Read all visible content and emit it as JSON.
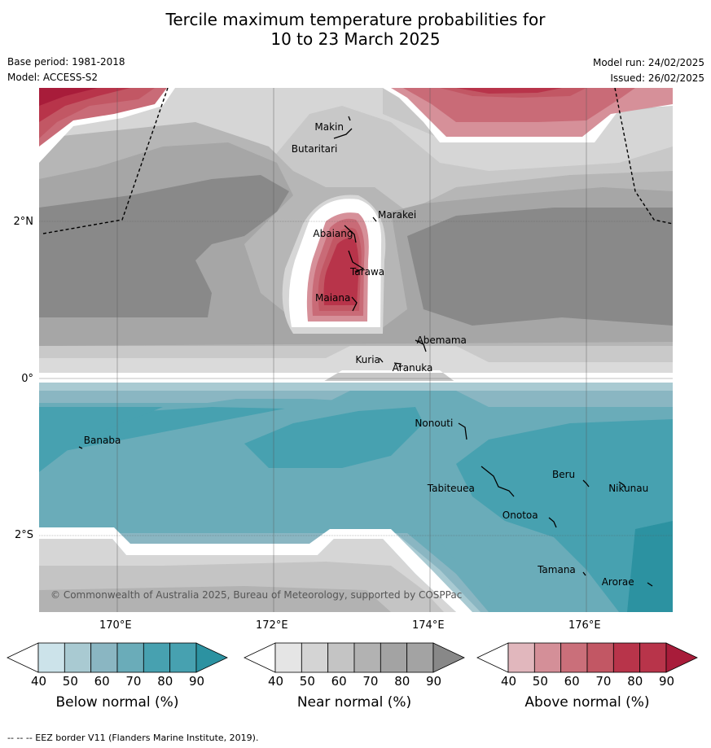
{
  "title_line1": "Tercile maximum temperature probabilities for",
  "title_line2": "10 to 23 March 2025",
  "base_period": "Base period: 1981-2018",
  "model": "Model: ACCESS-S2",
  "model_run": "Model run: 24/02/2025",
  "issued": "Issued: 26/02/2025",
  "copyright": "© Commonwealth of Australia 2025, Bureau of Meteorology, supported by COSPPac",
  "footer": "-- -- -- EEZ border V11 (Flanders Marine Institute, 2019).",
  "lon_ticks": [
    "170°E",
    "172°E",
    "174°E",
    "176°E"
  ],
  "lat_ticks": [
    "2°N",
    "0°",
    "2°S"
  ],
  "places": [
    {
      "name": "Makin",
      "lon": 172.9,
      "lat": 3.15
    },
    {
      "name": "Butaritari",
      "lon": 172.8,
      "lat": 3.0
    },
    {
      "name": "Marakei",
      "lon": 173.25,
      "lat": 2.0
    },
    {
      "name": "Abaiang",
      "lon": 172.9,
      "lat": 1.85
    },
    {
      "name": "Tarawa",
      "lon": 173.0,
      "lat": 1.4
    },
    {
      "name": "Maiana",
      "lon": 173.0,
      "lat": 0.93
    },
    {
      "name": "Abemama",
      "lon": 173.85,
      "lat": 0.4
    },
    {
      "name": "Kuria",
      "lon": 173.4,
      "lat": 0.22
    },
    {
      "name": "Aranuka",
      "lon": 173.6,
      "lat": 0.17
    },
    {
      "name": "Nonouti",
      "lon": 174.4,
      "lat": -0.65
    },
    {
      "name": "Banaba",
      "lon": 169.55,
      "lat": -0.85
    },
    {
      "name": "Tabiteuea",
      "lon": 174.8,
      "lat": -1.35
    },
    {
      "name": "Beru",
      "lon": 176.0,
      "lat": -1.33
    },
    {
      "name": "Nikunau",
      "lon": 176.45,
      "lat": -1.35
    },
    {
      "name": "Onotoa",
      "lon": 175.55,
      "lat": -1.8
    },
    {
      "name": "Tamana",
      "lon": 175.98,
      "lat": -2.5
    },
    {
      "name": "Arorae",
      "lon": 176.82,
      "lat": -2.65
    }
  ],
  "colorbars": [
    {
      "name": "Below normal (%)",
      "colors": [
        "#cce3ea",
        "#a9cad2",
        "#8ab6c2",
        "#6aacb9",
        "#47a1b0",
        "#2c92a1"
      ],
      "ticks": [
        "40",
        "50",
        "60",
        "70",
        "80",
        "90"
      ]
    },
    {
      "name": "Near normal (%)",
      "colors": [
        "#e5e5e5",
        "#d4d4d4",
        "#c4c4c4",
        "#b2b2b2",
        "#a3a3a3",
        "#888888"
      ],
      "ticks": [
        "40",
        "50",
        "60",
        "70",
        "80",
        "90"
      ]
    },
    {
      "name": "Above normal (%)",
      "colors": [
        "#e1b7bd",
        "#d48f98",
        "#ca6f7a",
        "#c25764",
        "#b8344a",
        "#a81c3a"
      ],
      "ticks": [
        "40",
        "50",
        "60",
        "70",
        "80",
        "90"
      ]
    }
  ]
}
